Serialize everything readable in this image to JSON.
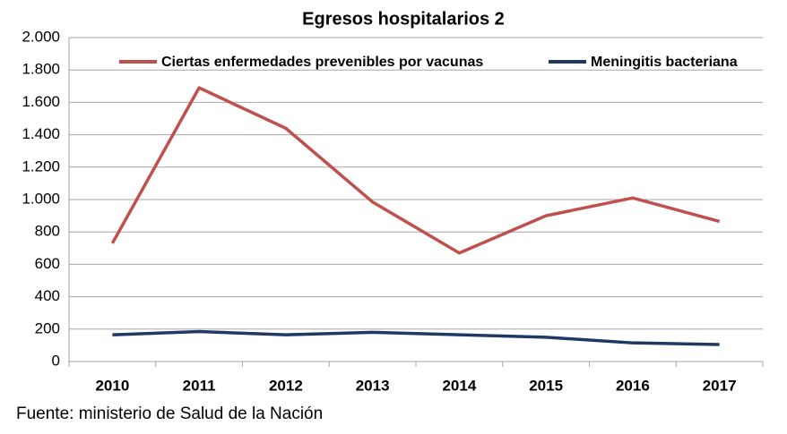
{
  "chart_data": {
    "type": "line",
    "title": "Egresos hospitalarios 2",
    "source": "Fuente: ministerio de Salud de la Nación",
    "categories": [
      "2010",
      "2011",
      "2012",
      "2013",
      "2014",
      "2015",
      "2016",
      "2017"
    ],
    "series": [
      {
        "name": "Ciertas enfermedades prevenibles por vacunas",
        "color": "#c0504d",
        "values": [
          730,
          1690,
          1440,
          985,
          670,
          900,
          1010,
          865
        ]
      },
      {
        "name": "Meningitis bacteriana",
        "color": "#1f3864",
        "values": [
          165,
          185,
          165,
          180,
          165,
          150,
          115,
          105
        ]
      }
    ],
    "ylim": [
      0,
      2000
    ],
    "yticks": [
      0,
      200,
      400,
      600,
      800,
      {
        "value": 1000,
        "label": "1.000"
      },
      {
        "value": 1200,
        "label": "1.200"
      },
      {
        "value": 1400,
        "label": "1.400"
      },
      {
        "value": 1600,
        "label": "1.600"
      },
      {
        "value": 1800,
        "label": "1.800"
      },
      {
        "value": 2000,
        "label": "2.000"
      }
    ],
    "grid": true,
    "legend": "top"
  }
}
